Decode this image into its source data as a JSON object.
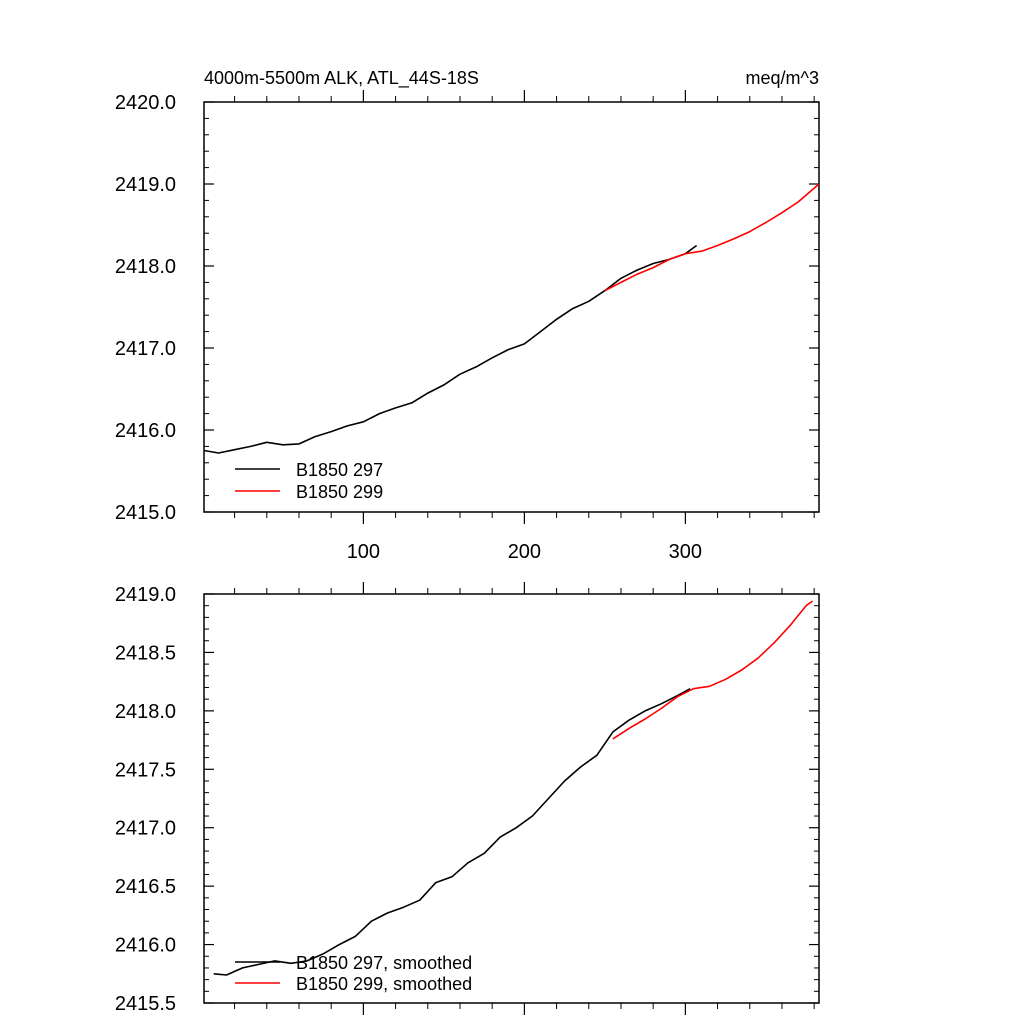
{
  "chart_data": [
    {
      "type": "line",
      "title": "4000m-5500m ALK, ATL_44S-18S",
      "units": "meq/m^3",
      "xlim": [
        1,
        383
      ],
      "ylim": [
        2415.0,
        2420.0
      ],
      "xticks": [
        100,
        200,
        300
      ],
      "xtick_labels": [
        "100",
        "200",
        "300"
      ],
      "yticks": [
        2415.0,
        2416.0,
        2417.0,
        2418.0,
        2419.0,
        2420.0
      ],
      "ytick_labels": [
        "2415.0",
        "2416.0",
        "2417.0",
        "2418.0",
        "2419.0",
        "2420.0"
      ],
      "legend_position": "bottom-left",
      "series": [
        {
          "name": "B1850 297",
          "color": "#000000",
          "x": [
            1,
            10,
            20,
            30,
            40,
            50,
            60,
            70,
            80,
            90,
            100,
            110,
            120,
            130,
            140,
            150,
            160,
            170,
            180,
            190,
            200,
            210,
            220,
            230,
            240,
            250,
            260,
            270,
            280,
            290,
            300,
            307
          ],
          "y": [
            2415.75,
            2415.72,
            2415.76,
            2415.8,
            2415.85,
            2415.82,
            2415.83,
            2415.92,
            2415.98,
            2416.05,
            2416.1,
            2416.2,
            2416.27,
            2416.33,
            2416.45,
            2416.55,
            2416.68,
            2416.77,
            2416.88,
            2416.98,
            2417.05,
            2417.2,
            2417.35,
            2417.48,
            2417.57,
            2417.7,
            2417.85,
            2417.95,
            2418.03,
            2418.08,
            2418.15,
            2418.25
          ]
        },
        {
          "name": "B1850 299",
          "color": "#ff0000",
          "x": [
            250,
            260,
            270,
            280,
            290,
            300,
            310,
            320,
            330,
            340,
            350,
            360,
            370,
            380,
            383
          ],
          "y": [
            2417.7,
            2417.8,
            2417.9,
            2417.98,
            2418.08,
            2418.15,
            2418.18,
            2418.25,
            2418.33,
            2418.42,
            2418.53,
            2418.65,
            2418.78,
            2418.95,
            2419.0
          ]
        }
      ]
    },
    {
      "type": "line",
      "xlim": [
        1,
        383
      ],
      "ylim": [
        2415.5,
        2419.0
      ],
      "xticks": [
        100,
        200,
        300
      ],
      "yticks": [
        2415.5,
        2416.0,
        2416.5,
        2417.0,
        2417.5,
        2418.0,
        2418.5,
        2419.0
      ],
      "ytick_labels": [
        "2415.5",
        "2416.0",
        "2416.5",
        "2417.0",
        "2417.5",
        "2418.0",
        "2418.5",
        "2419.0"
      ],
      "legend_position": "bottom-left",
      "series": [
        {
          "name": "B1850 297, smoothed",
          "color": "#000000",
          "x": [
            7,
            15,
            25,
            35,
            45,
            55,
            65,
            75,
            85,
            95,
            105,
            115,
            125,
            135,
            145,
            155,
            165,
            175,
            185,
            195,
            205,
            215,
            225,
            235,
            245,
            255,
            265,
            275,
            285,
            295,
            303
          ],
          "y": [
            2415.75,
            2415.74,
            2415.8,
            2415.83,
            2415.86,
            2415.84,
            2415.86,
            2415.92,
            2416.0,
            2416.07,
            2416.2,
            2416.27,
            2416.32,
            2416.38,
            2416.53,
            2416.58,
            2416.7,
            2416.78,
            2416.92,
            2417.0,
            2417.1,
            2417.25,
            2417.4,
            2417.52,
            2417.62,
            2417.82,
            2417.92,
            2418.0,
            2418.06,
            2418.13,
            2418.19
          ]
        },
        {
          "name": "B1850 299, smoothed",
          "color": "#ff0000",
          "x": [
            255,
            265,
            275,
            285,
            295,
            305,
            315,
            325,
            335,
            345,
            355,
            365,
            375,
            379
          ],
          "y": [
            2417.76,
            2417.85,
            2417.93,
            2418.02,
            2418.12,
            2418.19,
            2418.21,
            2418.27,
            2418.35,
            2418.45,
            2418.58,
            2418.73,
            2418.9,
            2418.94
          ]
        }
      ]
    }
  ]
}
